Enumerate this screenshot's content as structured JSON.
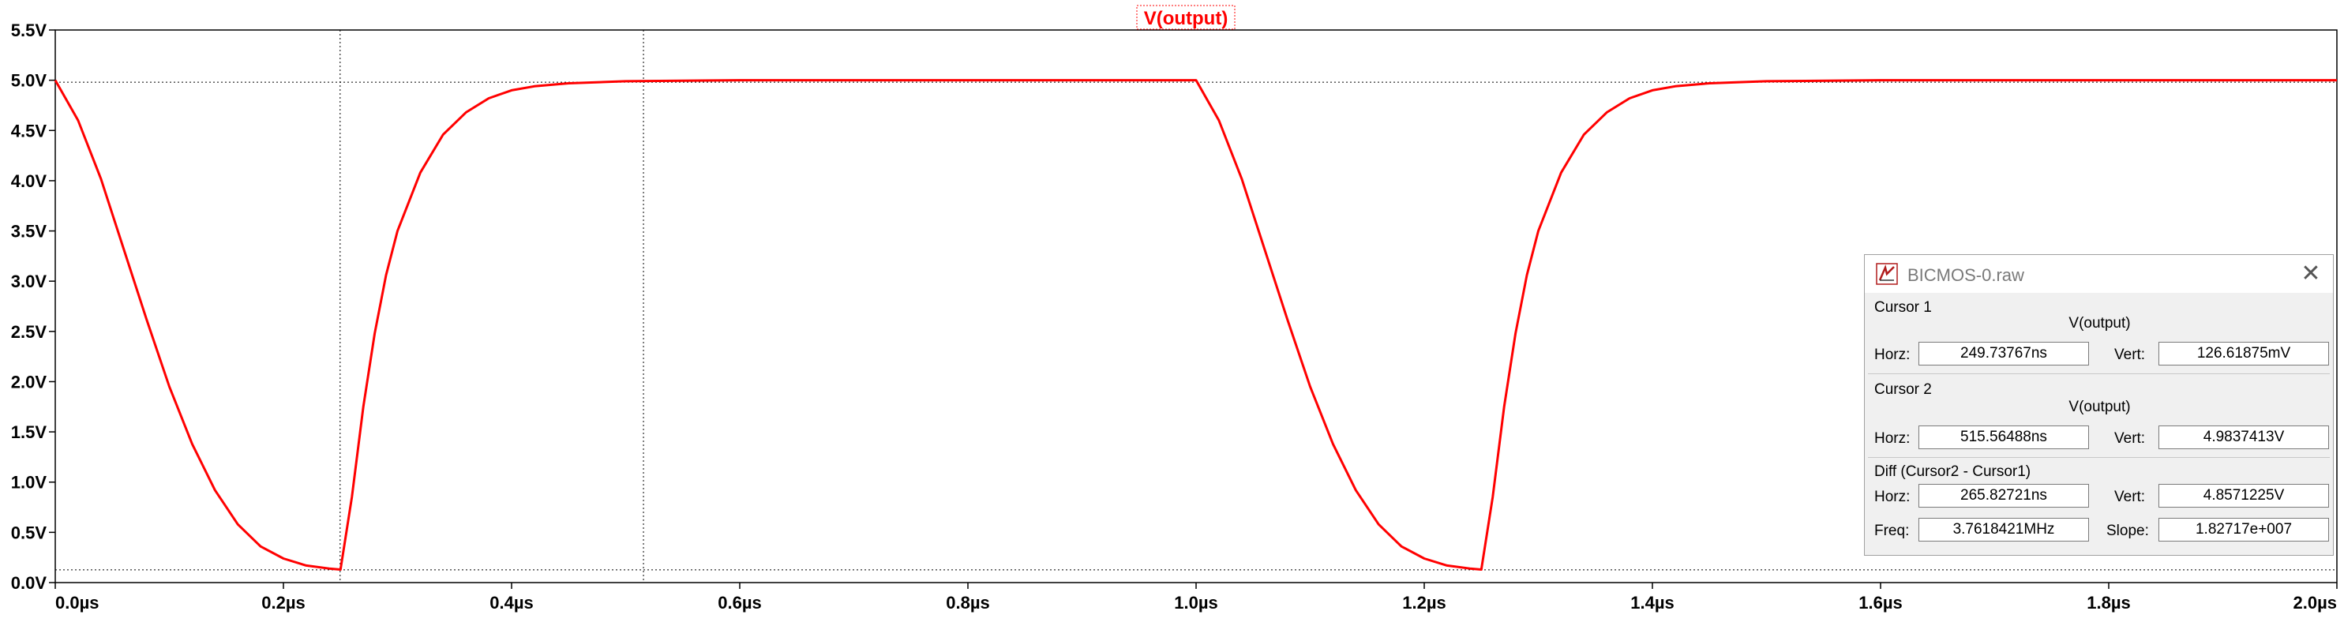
{
  "chart_data": {
    "type": "line",
    "title": "V(output)",
    "xlabel": "",
    "ylabel": "",
    "xlim": [
      0,
      2.0
    ],
    "ylim": [
      0,
      5.5
    ],
    "x_unit": "µs",
    "y_unit": "V",
    "x_ticks": [
      "0.0µs",
      "0.2µs",
      "0.4µs",
      "0.6µs",
      "0.8µs",
      "1.0µs",
      "1.2µs",
      "1.4µs",
      "1.6µs",
      "1.8µs",
      "2.0µs"
    ],
    "y_ticks": [
      "0.0V",
      "0.5V",
      "1.0V",
      "1.5V",
      "2.0V",
      "2.5V",
      "3.0V",
      "3.5V",
      "4.0V",
      "4.5V",
      "5.0V",
      "5.5V"
    ],
    "series": [
      {
        "name": "V(output)",
        "color": "#ff0000",
        "x": [
          0.0,
          0.02,
          0.04,
          0.06,
          0.08,
          0.1,
          0.12,
          0.14,
          0.16,
          0.18,
          0.2,
          0.22,
          0.24,
          0.25,
          0.26,
          0.27,
          0.28,
          0.29,
          0.3,
          0.32,
          0.34,
          0.36,
          0.38,
          0.4,
          0.42,
          0.45,
          0.5,
          0.6,
          0.8,
          1.0,
          1.02,
          1.04,
          1.06,
          1.08,
          1.1,
          1.12,
          1.14,
          1.16,
          1.18,
          1.2,
          1.22,
          1.24,
          1.25,
          1.26,
          1.27,
          1.28,
          1.29,
          1.3,
          1.32,
          1.34,
          1.36,
          1.38,
          1.4,
          1.42,
          1.45,
          1.5,
          1.6,
          1.8,
          2.0
        ],
        "y": [
          5.0,
          4.6,
          4.02,
          3.32,
          2.62,
          1.95,
          1.38,
          0.92,
          0.58,
          0.36,
          0.24,
          0.17,
          0.14,
          0.13,
          0.85,
          1.75,
          2.48,
          3.06,
          3.5,
          4.08,
          4.46,
          4.68,
          4.82,
          4.9,
          4.94,
          4.97,
          4.99,
          5.0,
          5.0,
          5.0,
          4.6,
          4.02,
          3.32,
          2.62,
          1.95,
          1.38,
          0.92,
          0.58,
          0.36,
          0.24,
          0.17,
          0.14,
          0.13,
          0.85,
          1.75,
          2.48,
          3.06,
          3.5,
          4.08,
          4.46,
          4.68,
          4.82,
          4.9,
          4.94,
          4.97,
          4.99,
          5.0,
          5.0,
          5.0
        ]
      }
    ],
    "cursors": [
      {
        "name": "cursor-1",
        "x": 0.2497,
        "y": 0.1266
      },
      {
        "name": "cursor-2",
        "x": 0.5156,
        "y": 4.98
      }
    ],
    "grid": false
  },
  "cursor_dialog": {
    "title": "BICMOS-0.raw",
    "close_glyph": "✕",
    "cursor1_label": "Cursor 1",
    "cursor1_trace": "V(output)",
    "cursor2_label": "Cursor 2",
    "cursor2_trace": "V(output)",
    "horz_label": "Horz:",
    "vert_label": "Vert:",
    "freq_label": "Freq:",
    "slope_label": "Slope:",
    "cursor1_horz": "249.73767ns",
    "cursor1_vert": "126.61875mV",
    "cursor2_horz": "515.56488ns",
    "cursor2_vert": "4.9837413V",
    "diff_label": "Diff (Cursor2 - Cursor1)",
    "diff_horz": "265.82721ns",
    "diff_vert": "4.8571225V",
    "freq": "3.7618421MHz",
    "slope": "1.82717e+007",
    "logo_color": "#b01c1c"
  }
}
